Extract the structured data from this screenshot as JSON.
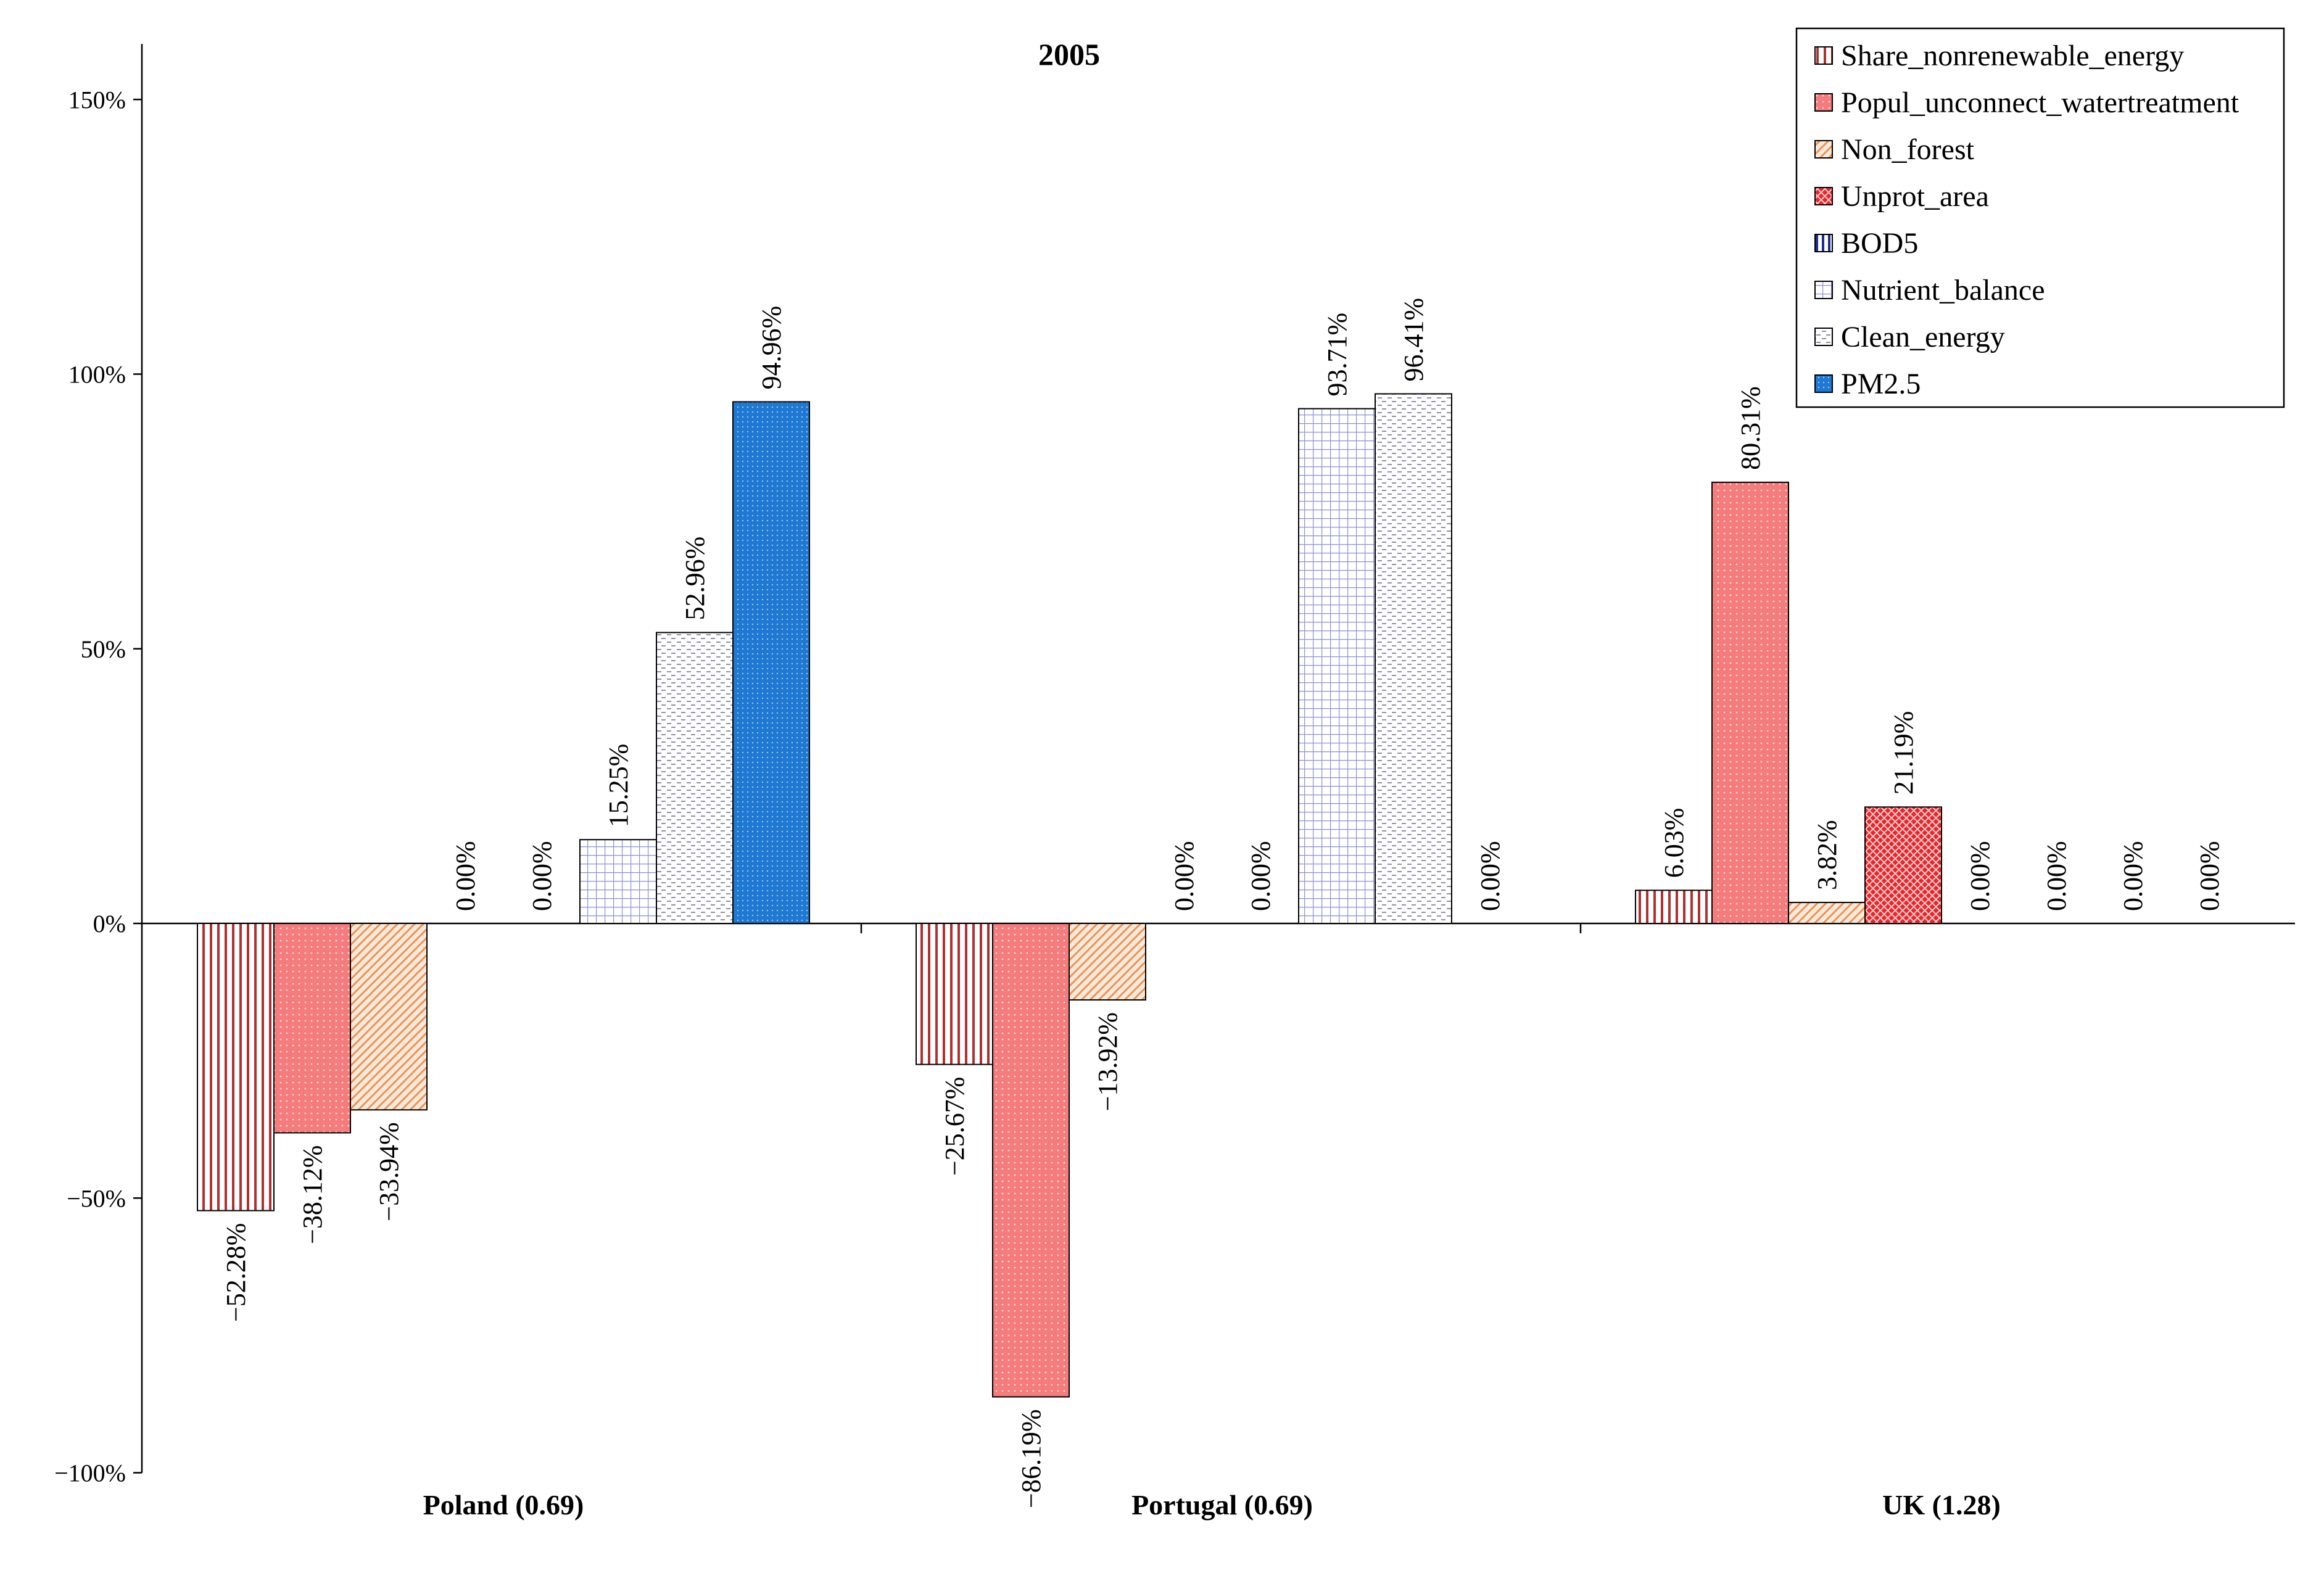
{
  "chart_data": {
    "type": "bar",
    "title": "2005",
    "categories": [
      "Poland (0.69)",
      "Portugal (0.69)",
      "UK (1.28)"
    ],
    "ylim": [
      -100,
      150
    ],
    "ytick_values": [
      -100,
      -50,
      0,
      50,
      100,
      150
    ],
    "ytick_labels": [
      "−100%",
      "−50%",
      "0%",
      "50%",
      "100%",
      "150%"
    ],
    "legend_position": "top-right",
    "series": [
      {
        "name": "Share_nonrenewable_energy",
        "values": [
          -52.28,
          -25.67,
          6.03
        ],
        "labels": [
          "−52.28%",
          "−25.67%",
          "6.03%"
        ],
        "color": "#c0504d"
      },
      {
        "name": "Popul_unconnect_watertreatment",
        "values": [
          -38.12,
          -86.19,
          80.31
        ],
        "labels": [
          "−38.12%",
          "−86.19%",
          "80.31%"
        ],
        "color": "#f47c7c"
      },
      {
        "name": "Non_forest",
        "values": [
          -33.94,
          -13.92,
          3.82
        ],
        "labels": [
          "−33.94%",
          "−13.92%",
          "3.82%"
        ],
        "color": "#fac090"
      },
      {
        "name": "Unprot_area",
        "values": [
          0.0,
          0.0,
          21.19
        ],
        "labels": [
          "0.00%",
          "0.00%",
          "21.19%"
        ],
        "color": "#e8262c"
      },
      {
        "name": "BOD5",
        "values": [
          0.0,
          0.0,
          0.0
        ],
        "labels": [
          "0.00%",
          "0.00%",
          "0.00%"
        ],
        "color": "#1f2d8a"
      },
      {
        "name": "Nutrient_balance",
        "values": [
          15.25,
          93.71,
          0.0
        ],
        "labels": [
          "15.25%",
          "93.71%",
          "0.00%"
        ],
        "color": "#d9daf5"
      },
      {
        "name": "Clean_energy",
        "values": [
          52.96,
          96.41,
          0.0
        ],
        "labels": [
          "52.96%",
          "96.41%",
          "0.00%"
        ],
        "color": "#c4c4d6"
      },
      {
        "name": "PM2.5",
        "values": [
          94.96,
          0.0,
          0.0
        ],
        "labels": [
          "94.96%",
          "0.00%",
          "0.00%"
        ],
        "color": "#1f78d1"
      }
    ]
  }
}
